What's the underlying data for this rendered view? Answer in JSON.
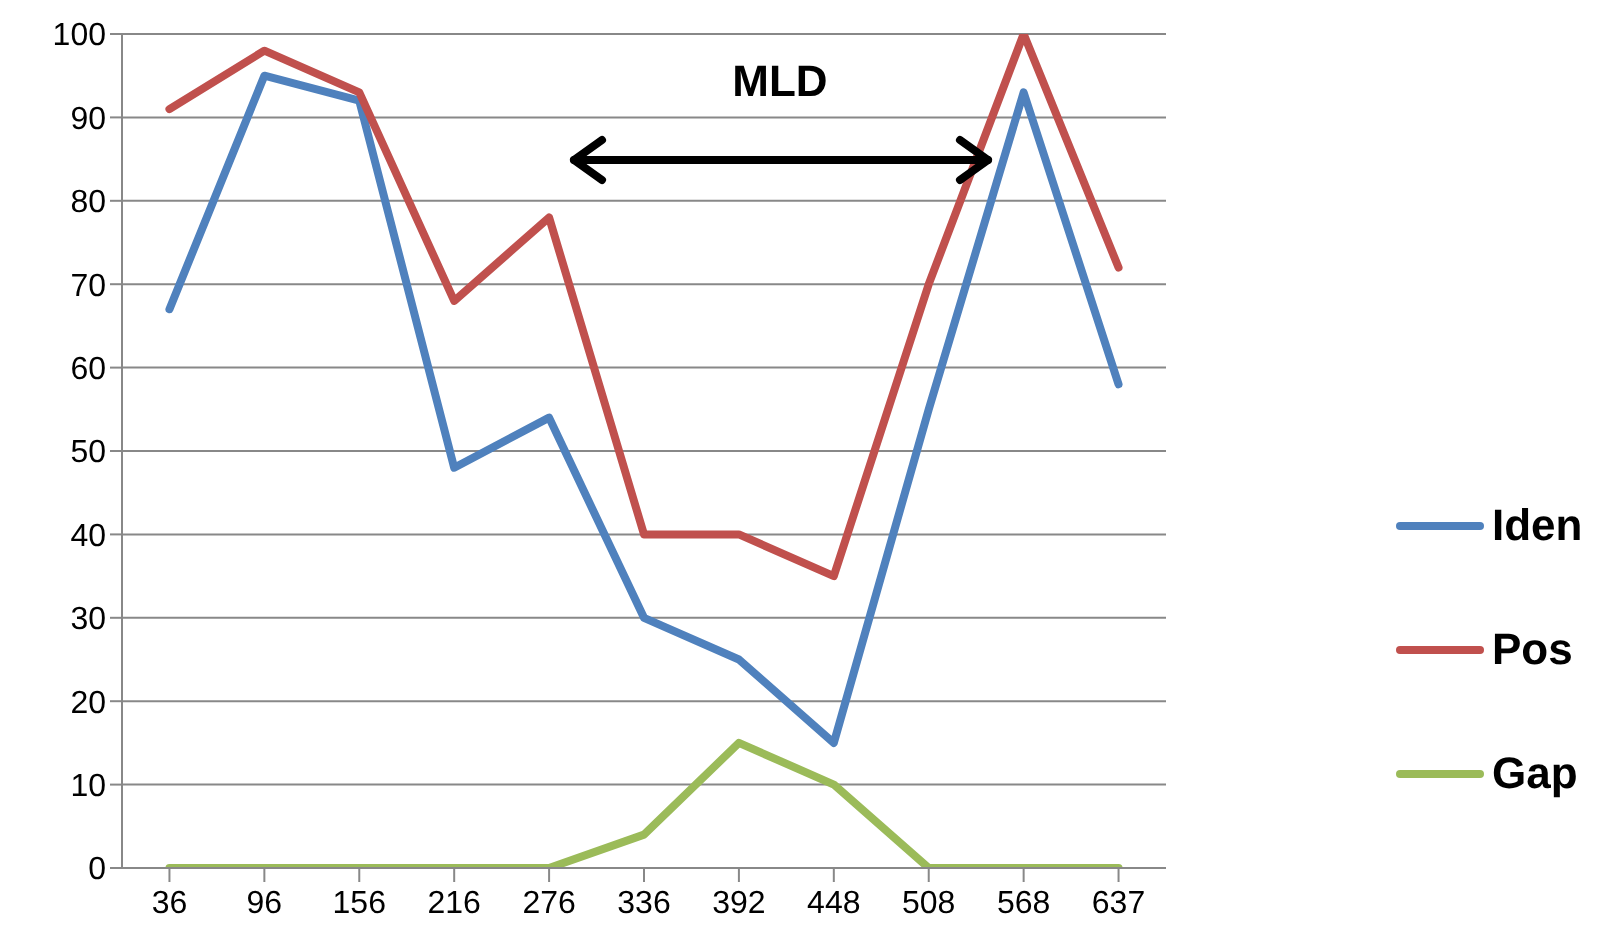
{
  "chart_data": {
    "type": "line",
    "categories": [
      "36",
      "96",
      "156",
      "216",
      "276",
      "336",
      "392",
      "448",
      "508",
      "568",
      "637"
    ],
    "series": [
      {
        "name": "Iden",
        "color": "#4f81bd",
        "values": [
          67,
          95,
          92,
          48,
          54,
          30,
          25,
          15,
          55,
          93,
          58
        ]
      },
      {
        "name": "Pos",
        "color": "#c0504d",
        "values": [
          91,
          98,
          93,
          68,
          78,
          40,
          40,
          35,
          70,
          100,
          72
        ]
      },
      {
        "name": "Gap",
        "color": "#9bbb59",
        "values": [
          0,
          0,
          0,
          0,
          0,
          4,
          15,
          10,
          0,
          0,
          0
        ]
      }
    ],
    "ylim": [
      0,
      100
    ],
    "yticks": [
      0,
      10,
      20,
      30,
      40,
      50,
      60,
      70,
      80,
      90,
      100
    ],
    "grid": "y",
    "legend": "right",
    "marker": "none",
    "line_style": "solid",
    "annotations": [
      "MLD"
    ]
  }
}
